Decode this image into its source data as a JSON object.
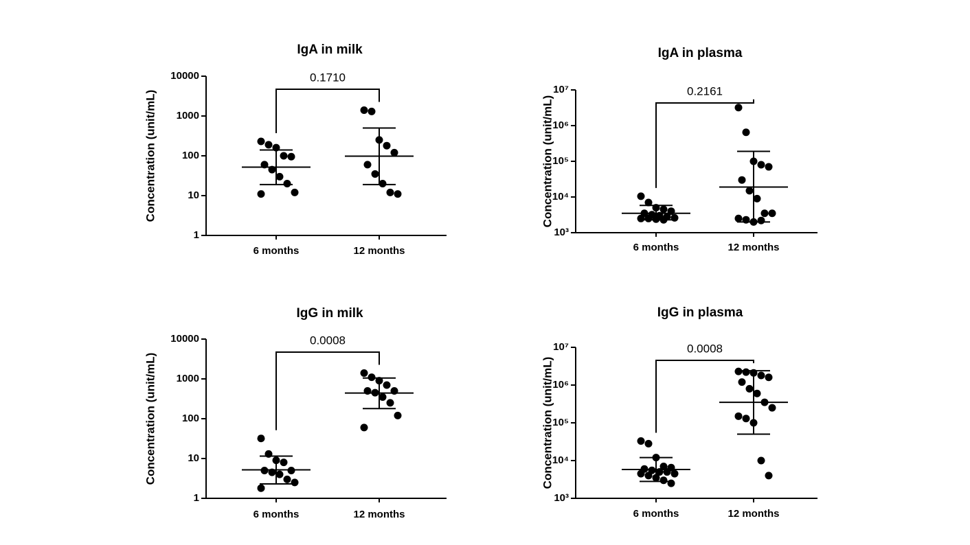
{
  "chart_data": [
    {
      "type": "scatter",
      "title": "IgA in milk",
      "ylabel": "Concentration (unit/mL)",
      "log_scale": true,
      "categories": [
        "6 months",
        "12 months"
      ],
      "values": [
        [
          230,
          190,
          160,
          100,
          95,
          60,
          45,
          30,
          20,
          12,
          11
        ],
        [
          1400,
          1300,
          250,
          180,
          120,
          60,
          35,
          20,
          12,
          11
        ]
      ],
      "center": [
        52,
        98
      ],
      "error_low": [
        19,
        19
      ],
      "error_high": [
        140,
        500
      ],
      "annotation": "0.1710",
      "color": "#000000",
      "ylim": [
        1,
        10000
      ],
      "yticks": [
        1,
        10,
        100,
        1000,
        10000
      ]
    },
    {
      "type": "scatter",
      "title": "IgA in plasma",
      "ylabel": "Concentration (unit/mL)",
      "log_scale": true,
      "categories": [
        "6 months",
        "12 months"
      ],
      "values": [
        [
          10500,
          7000,
          5000,
          4500,
          4000,
          3500,
          3200,
          3000,
          2800,
          2600,
          2500,
          2500,
          2400,
          2300
        ],
        [
          3200000,
          650000,
          100000,
          80000,
          70000,
          30000,
          15000,
          9000,
          3500,
          3500,
          2500,
          2300,
          2000,
          2200
        ]
      ],
      "center": [
        3500,
        19000
      ],
      "error_low": [
        2300,
        2000
      ],
      "error_high": [
        5800,
        190000
      ],
      "annotation": "0.2161",
      "color": "#000000",
      "ylim": [
        1000,
        10000000
      ],
      "yticks": [
        {
          "value": 1000,
          "label": "10³"
        },
        {
          "value": 10000,
          "label": "10⁴"
        },
        {
          "value": 100000,
          "label": "10⁵"
        },
        {
          "value": 1000000,
          "label": "10⁶"
        },
        {
          "value": 10000000,
          "label": "10⁷"
        }
      ]
    },
    {
      "type": "scatter",
      "title": "IgG in milk",
      "ylabel": "Concentration (unit/mL)",
      "log_scale": true,
      "categories": [
        "6 months",
        "12 months"
      ],
      "values": [
        [
          32,
          13,
          9,
          8,
          5,
          5,
          4.5,
          4,
          3,
          2.5,
          1.8
        ],
        [
          1400,
          1100,
          900,
          700,
          500,
          500,
          450,
          350,
          250,
          120,
          60
        ]
      ],
      "center": [
        5.2,
        440
      ],
      "error_low": [
        2.3,
        180
      ],
      "error_high": [
        11.5,
        1050
      ],
      "annotation": "0.0008",
      "color": "#000000",
      "ylim": [
        1,
        10000
      ],
      "yticks": [
        1,
        10,
        100,
        1000,
        10000
      ]
    },
    {
      "type": "scatter",
      "title": "IgG in plasma",
      "ylabel": "Concentration (unit/mL)",
      "log_scale": true,
      "categories": [
        "6 months",
        "12 months"
      ],
      "values": [
        [
          33000,
          28000,
          12000,
          7000,
          6500,
          6000,
          5500,
          5000,
          5000,
          4500,
          4500,
          4000,
          3500,
          3000,
          2500
        ],
        [
          2300000,
          2200000,
          2100000,
          1800000,
          1600000,
          1200000,
          800000,
          600000,
          350000,
          250000,
          150000,
          130000,
          100000,
          10000,
          4000
        ]
      ],
      "center": [
        5800,
        350000
      ],
      "error_low": [
        2800,
        50000
      ],
      "error_high": [
        12000,
        2400000
      ],
      "annotation": "0.0008",
      "color": "#000000",
      "ylim": [
        1000,
        10000000
      ],
      "yticks": [
        {
          "value": 1000,
          "label": "10³"
        },
        {
          "value": 10000,
          "label": "10⁴"
        },
        {
          "value": 100000,
          "label": "10⁵"
        },
        {
          "value": 1000000,
          "label": "10⁶"
        },
        {
          "value": 10000000,
          "label": "10⁷"
        }
      ]
    }
  ]
}
